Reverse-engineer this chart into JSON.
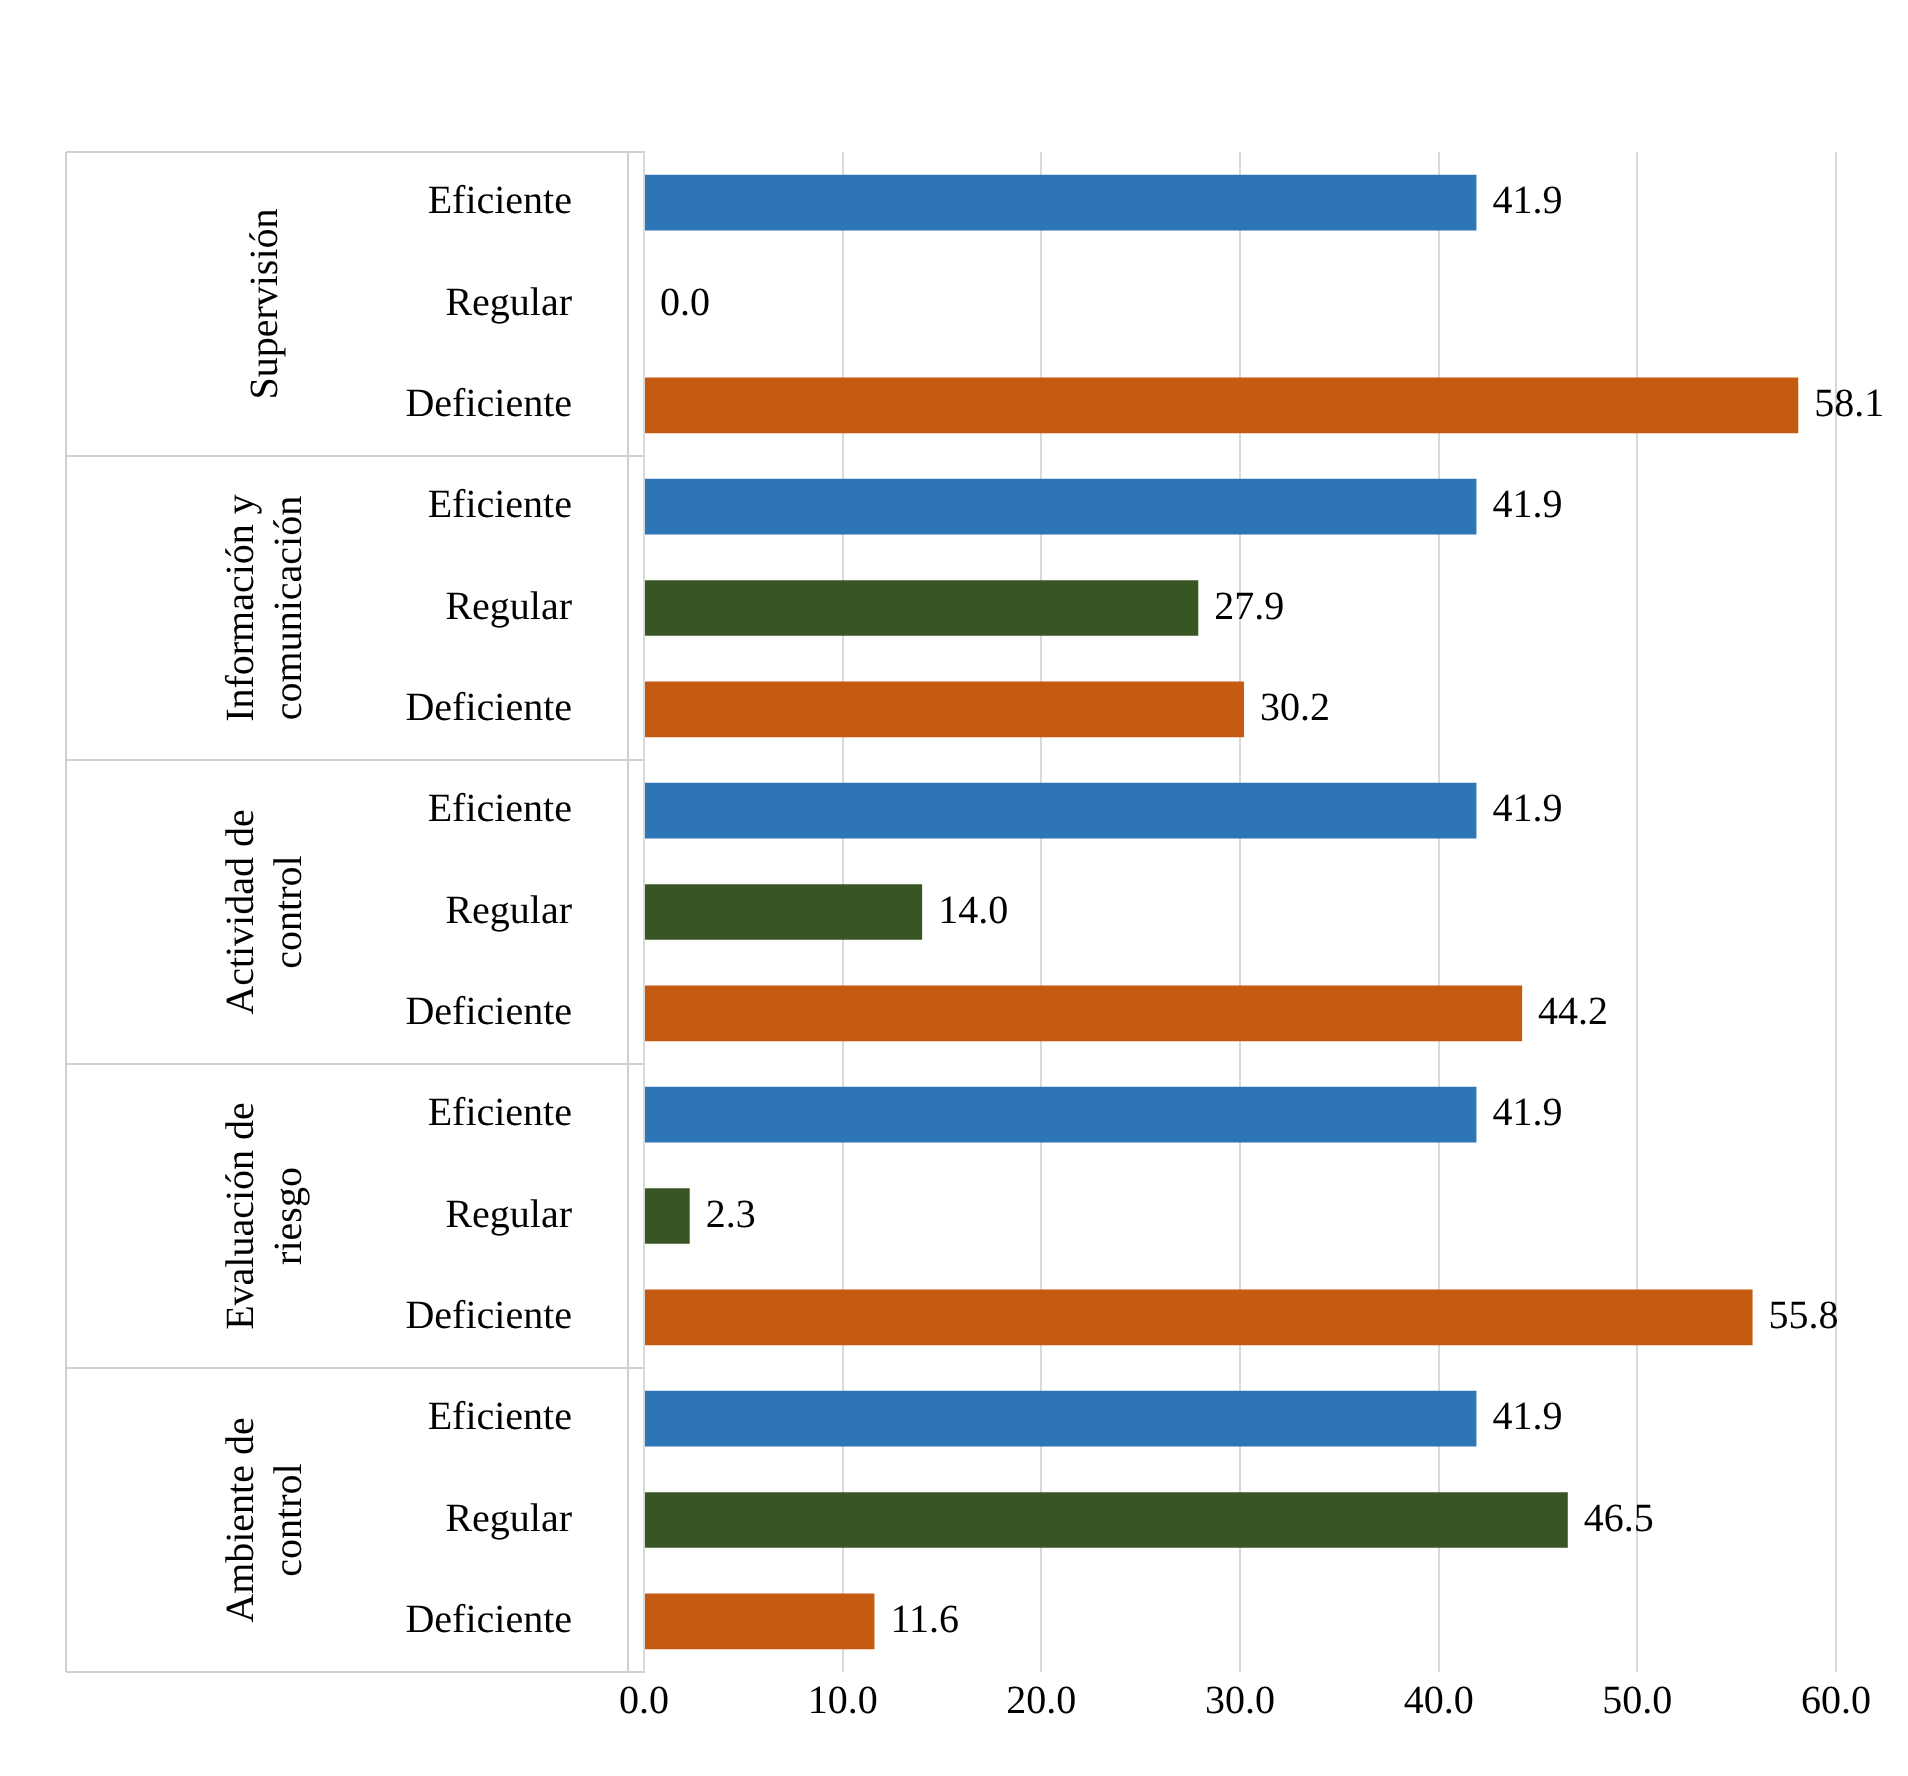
{
  "chart_data": {
    "type": "bar",
    "orientation": "horizontal",
    "categories": [
      "Eficiente",
      "Regular",
      "Deficiente",
      "Eficiente",
      "Regular",
      "Deficiente",
      "Eficiente",
      "Regular",
      "Deficiente",
      "Eficiente",
      "Regular",
      "Deficiente",
      "Eficiente",
      "Regular",
      "Deficiente"
    ],
    "values": [
      41.9,
      0.0,
      58.1,
      41.9,
      27.9,
      30.2,
      41.9,
      14.0,
      44.2,
      41.9,
      2.3,
      55.8,
      41.9,
      46.5,
      11.6
    ],
    "value_labels": [
      "41.9",
      "0.0",
      "58.1",
      "41.9",
      "27.9",
      "30.2",
      "41.9",
      "14.0",
      "44.2",
      "41.9",
      "2.3",
      "55.8",
      "41.9",
      "46.5",
      "11.6"
    ],
    "colors": [
      "#2e75b6",
      "#375623",
      "#c55a11",
      "#2e75b6",
      "#375623",
      "#c55a11",
      "#2e75b6",
      "#375623",
      "#c55a11",
      "#2e75b6",
      "#375623",
      "#c55a11",
      "#2e75b6",
      "#375623",
      "#c55a11"
    ],
    "annotations": [
      "Supervisión",
      "Información y comunicación",
      "Actividad de control",
      "Evaluación de riesgo",
      "Ambiente de control"
    ],
    "xlim": [
      0,
      60
    ],
    "xticks": [
      {
        "value": 0,
        "label": "0.0"
      },
      {
        "value": 10,
        "label": "10.0"
      },
      {
        "value": 20,
        "label": "20.0"
      },
      {
        "value": 30,
        "label": "30.0"
      },
      {
        "value": 40,
        "label": "40.0"
      },
      {
        "value": 50,
        "label": "50.0"
      },
      {
        "value": 60,
        "label": "60.0"
      }
    ],
    "grid": "x",
    "legend": false
  }
}
